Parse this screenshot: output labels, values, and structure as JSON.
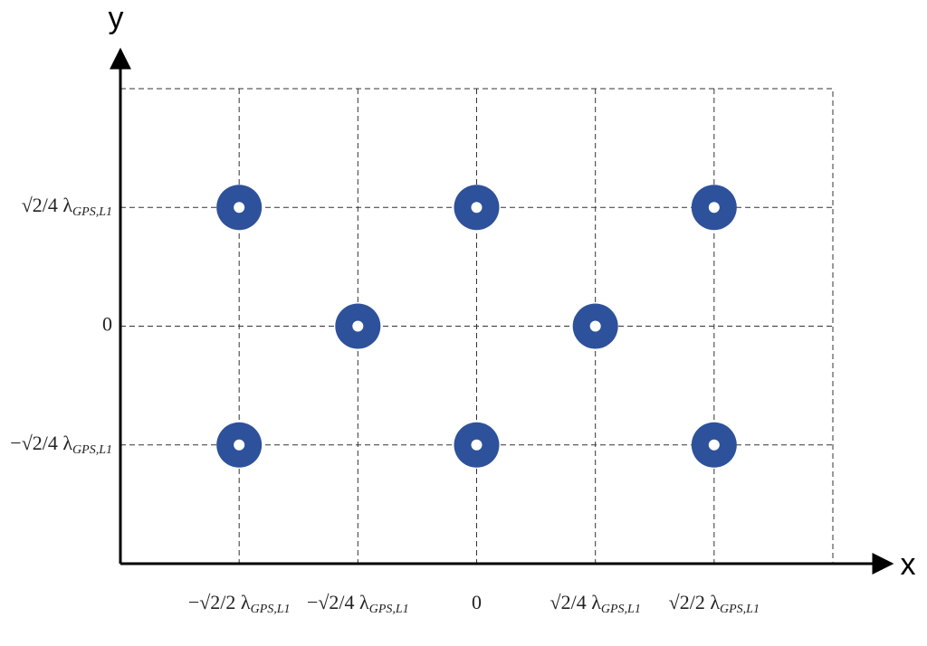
{
  "chart_data": {
    "type": "scatter",
    "x_label": "x",
    "y_label": "y",
    "xlim": [
      -1.0607,
      1.0607
    ],
    "ylim": [
      -0.7071,
      0.7071
    ],
    "xticks": [
      {
        "value": -0.7071,
        "label": "−√2/2 λGPS,L1"
      },
      {
        "value": -0.3536,
        "label": "−√2/4 λGPS,L1"
      },
      0,
      {
        "value": 0.3536,
        "label": "√2/4 λGPS,L1"
      },
      {
        "value": 0.7071,
        "label": "√2/2 λGPS,L1"
      }
    ],
    "yticks": [
      {
        "value": -0.3536,
        "label": "−√2/4 λGPS,L1"
      },
      0,
      {
        "value": 0.3536,
        "label": "√2/4 λGPS,L1"
      }
    ],
    "grid": true,
    "color": "#2e519b",
    "x": [
      -0.7071,
      0,
      0.7071,
      -0.3536,
      0.3536,
      -0.7071,
      0,
      0.7071
    ],
    "values": [
      0.3536,
      0.3536,
      0.3536,
      0,
      0,
      -0.3536,
      -0.3536,
      -0.3536
    ]
  }
}
